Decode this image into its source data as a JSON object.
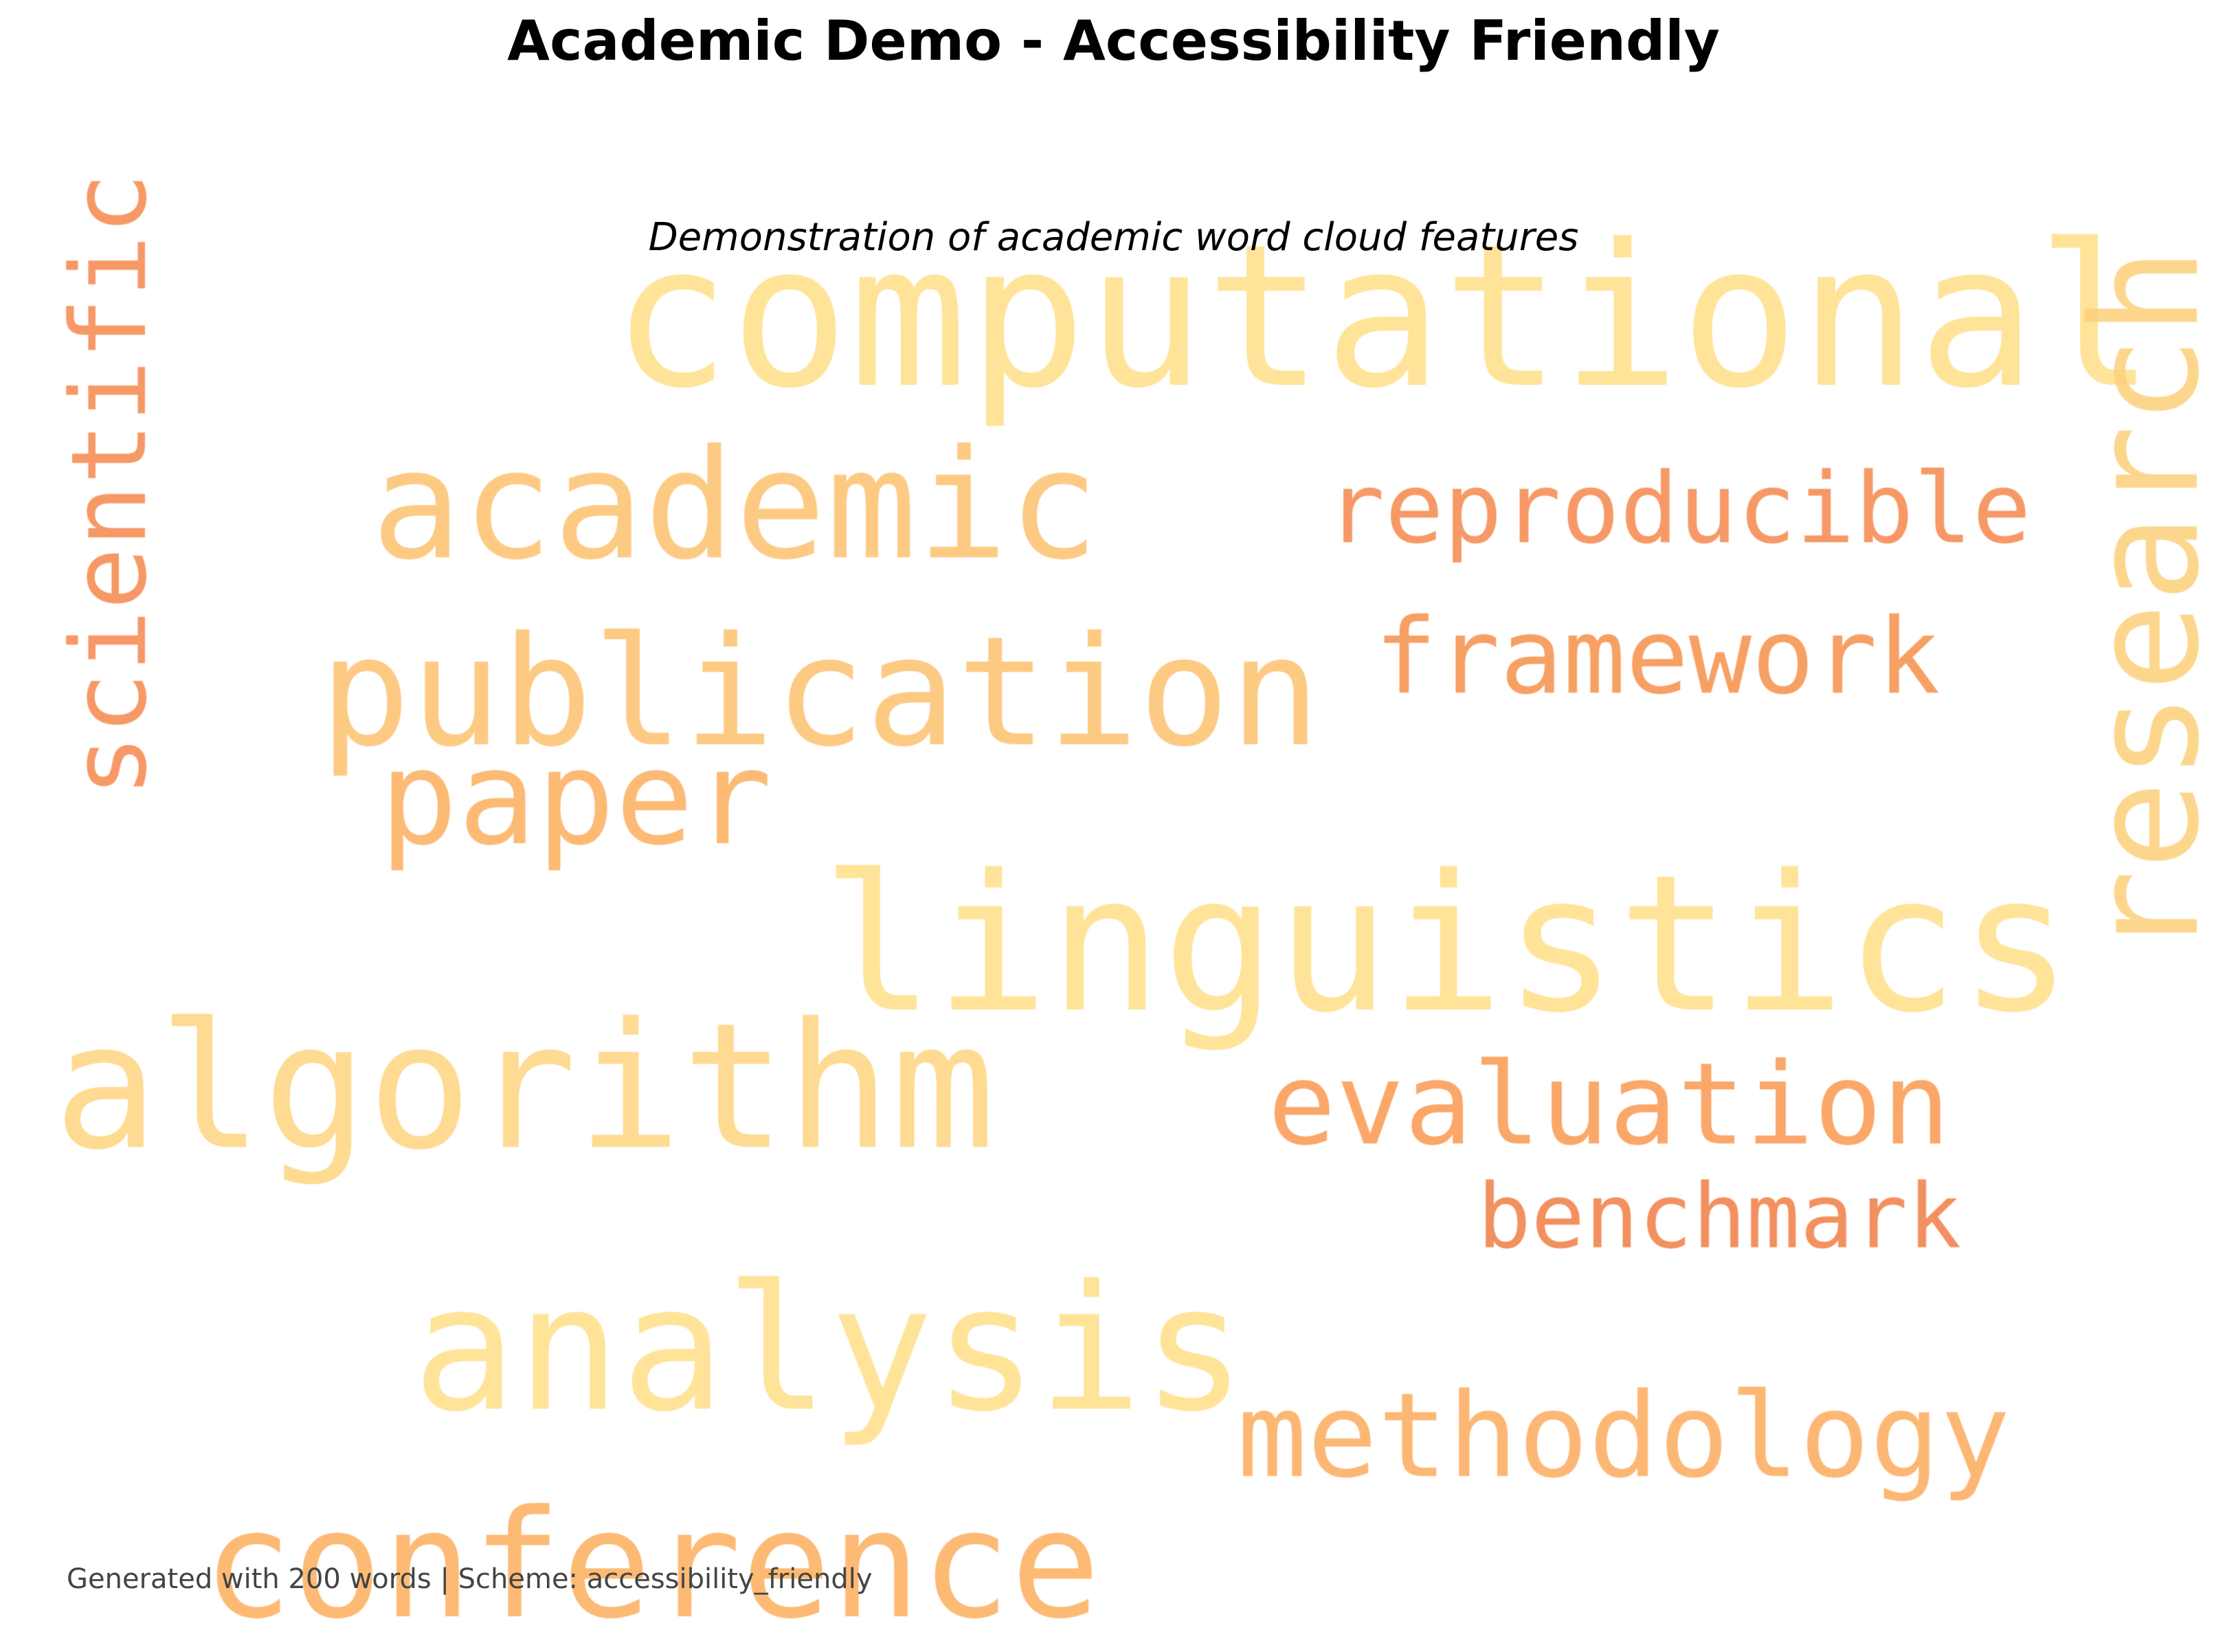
{
  "title": "Academic Demo - Accessibility Friendly",
  "subtitle": "Demonstration of academic word cloud features",
  "footer": "Generated with 200 words | Scheme: accessibility_friendly",
  "colors": {
    "background": "#ffffff",
    "title": "#000000",
    "footer": "#444444",
    "palette": [
      "#fee08b",
      "#fdd17f",
      "#fdc374",
      "#fdb163",
      "#fb9a52",
      "#f2814a"
    ]
  },
  "words": [
    {
      "text": "computational",
      "color": "#fee08b",
      "orientation": "horizontal"
    },
    {
      "text": "research",
      "color": "#fdd17f",
      "orientation": "vertical"
    },
    {
      "text": "scientific",
      "color": "#f58c52",
      "orientation": "vertical"
    },
    {
      "text": "academic",
      "color": "#fdc374",
      "orientation": "horizontal"
    },
    {
      "text": "reproducible",
      "color": "#f58c52",
      "orientation": "horizontal"
    },
    {
      "text": "publication",
      "color": "#fdc374",
      "orientation": "horizontal"
    },
    {
      "text": "framework",
      "color": "#f7934f",
      "orientation": "horizontal"
    },
    {
      "text": "paper",
      "color": "#fdb163",
      "orientation": "horizontal"
    },
    {
      "text": "linguistics",
      "color": "#fee08b",
      "orientation": "horizontal"
    },
    {
      "text": "algorithm",
      "color": "#fed683",
      "orientation": "horizontal"
    },
    {
      "text": "evaluation",
      "color": "#fa9c55",
      "orientation": "horizontal"
    },
    {
      "text": "benchmark",
      "color": "#f2814a",
      "orientation": "horizontal"
    },
    {
      "text": "analysis",
      "color": "#fee08b",
      "orientation": "horizontal"
    },
    {
      "text": "methodology",
      "color": "#fdae61",
      "orientation": "horizontal"
    },
    {
      "text": "conference",
      "color": "#fdb163",
      "orientation": "horizontal"
    }
  ]
}
